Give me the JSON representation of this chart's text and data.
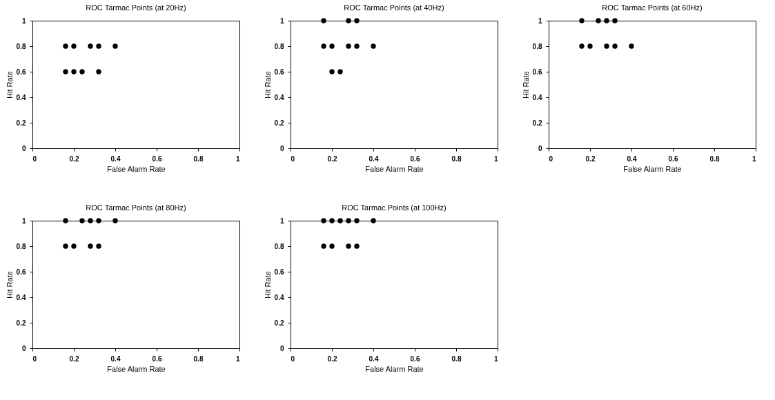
{
  "chart_data": [
    {
      "type": "scatter",
      "title": "ROC Tarmac Points (at 20Hz)",
      "xlabel": "False Alarm Rate",
      "ylabel": "Hit Rate",
      "x": [
        0.16,
        0.2,
        0.28,
        0.32,
        0.4,
        0.16,
        0.2,
        0.24,
        0.32
      ],
      "values": [
        0.8,
        0.8,
        0.8,
        0.8,
        0.8,
        0.6,
        0.6,
        0.6,
        0.6
      ],
      "color": "#000000",
      "marker": "circle",
      "xlim": [
        0,
        1
      ],
      "ylim": [
        0,
        1
      ],
      "xticks": [
        0,
        0.2,
        0.4,
        0.6,
        0.8,
        1
      ],
      "yticks": [
        0,
        0.2,
        0.4,
        0.6,
        0.8,
        1
      ]
    },
    {
      "type": "scatter",
      "title": "ROC Tarmac Points (at 40Hz)",
      "xlabel": "False Alarm Rate",
      "ylabel": "Hit Rate",
      "x": [
        0.16,
        0.28,
        0.32,
        0.16,
        0.2,
        0.28,
        0.32,
        0.4,
        0.2,
        0.24
      ],
      "values": [
        1,
        1,
        1,
        0.8,
        0.8,
        0.8,
        0.8,
        0.8,
        0.6,
        0.6
      ],
      "color": "#000000",
      "marker": "circle",
      "xlim": [
        0,
        1
      ],
      "ylim": [
        0,
        1
      ],
      "xticks": [
        0,
        0.2,
        0.4,
        0.6,
        0.8,
        1
      ],
      "yticks": [
        0,
        0.2,
        0.4,
        0.6,
        0.8,
        1
      ]
    },
    {
      "type": "scatter",
      "title": "ROC Tarmac Points (at 60Hz)",
      "xlabel": "False Alarm Rate",
      "ylabel": "Hit Rate",
      "x": [
        0.16,
        0.24,
        0.28,
        0.32,
        0.16,
        0.2,
        0.28,
        0.32,
        0.4
      ],
      "values": [
        1,
        1,
        1,
        1,
        0.8,
        0.8,
        0.8,
        0.8,
        0.8
      ],
      "color": "#000000",
      "marker": "circle",
      "xlim": [
        0,
        1
      ],
      "ylim": [
        0,
        1
      ],
      "xticks": [
        0,
        0.2,
        0.4,
        0.6,
        0.8,
        1
      ],
      "yticks": [
        0,
        0.2,
        0.4,
        0.6,
        0.8,
        1
      ]
    },
    {
      "type": "scatter",
      "title": "ROC Tarmac Points (at 80Hz)",
      "xlabel": "False Alarm Rate",
      "ylabel": "Hit Rate",
      "x": [
        0.16,
        0.24,
        0.28,
        0.32,
        0.4,
        0.16,
        0.2,
        0.28,
        0.32
      ],
      "values": [
        1,
        1,
        1,
        1,
        1,
        0.8,
        0.8,
        0.8,
        0.8
      ],
      "color": "#000000",
      "marker": "circle",
      "xlim": [
        0,
        1
      ],
      "ylim": [
        0,
        1
      ],
      "xticks": [
        0,
        0.2,
        0.4,
        0.6,
        0.8,
        1
      ],
      "yticks": [
        0,
        0.2,
        0.4,
        0.6,
        0.8,
        1
      ]
    },
    {
      "type": "scatter",
      "title": "ROC Tarmac Points (at 100Hz)",
      "xlabel": "False Alarm Rate",
      "ylabel": "Hit Rate",
      "x": [
        0.16,
        0.2,
        0.24,
        0.28,
        0.32,
        0.4,
        0.16,
        0.2,
        0.28,
        0.32
      ],
      "values": [
        1,
        1,
        1,
        1,
        1,
        1,
        0.8,
        0.8,
        0.8,
        0.8
      ],
      "color": "#000000",
      "marker": "circle",
      "xlim": [
        0,
        1
      ],
      "ylim": [
        0,
        1
      ],
      "xticks": [
        0,
        0.2,
        0.4,
        0.6,
        0.8,
        1
      ],
      "yticks": [
        0,
        0.2,
        0.4,
        0.6,
        0.8,
        1
      ]
    }
  ]
}
